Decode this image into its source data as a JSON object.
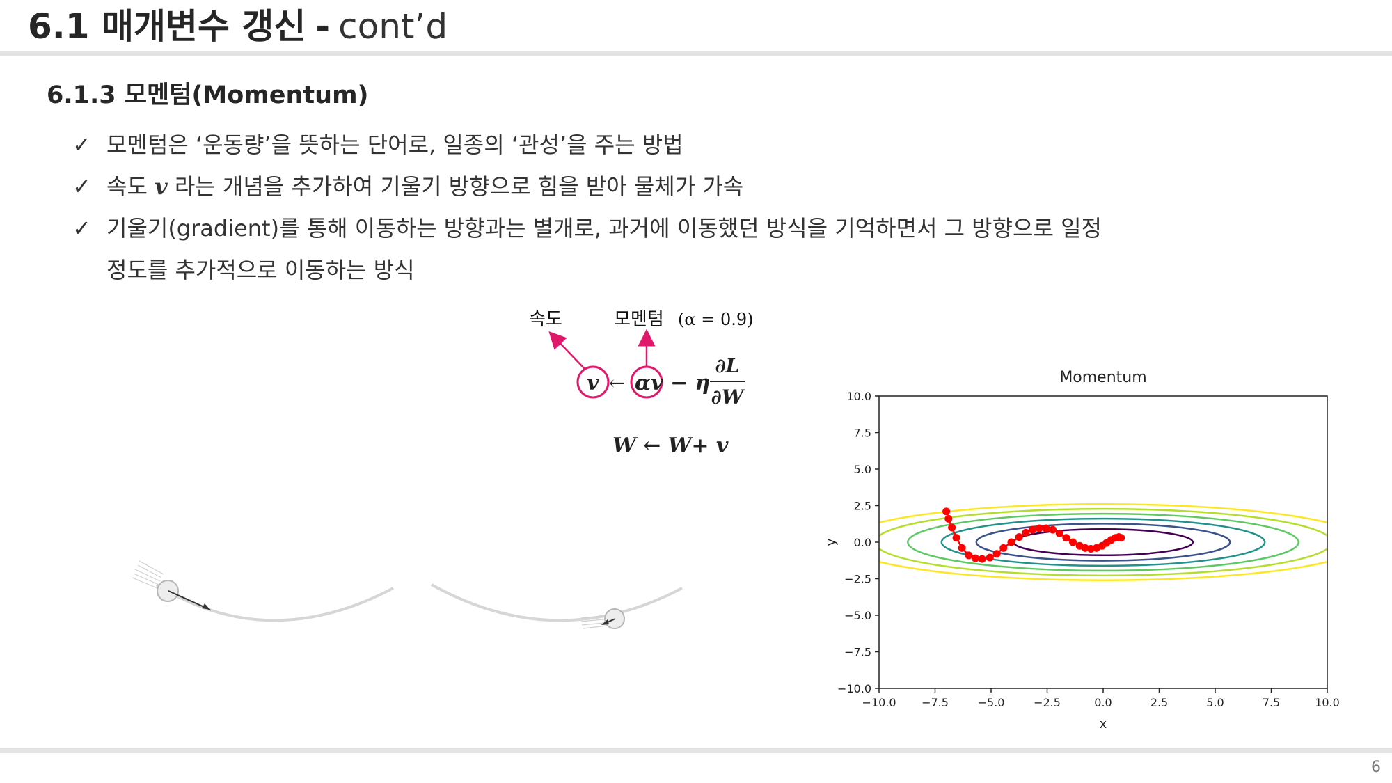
{
  "header": {
    "title_main": "6.1 매개변수 갱신",
    "title_sep": "-",
    "title_cont": "cont’d"
  },
  "section": {
    "heading": "6.1.3 모멘텀(Momentum)"
  },
  "bullets": [
    {
      "check": "✓",
      "text": "모멘텀은 ‘운동량’을 뜻하는 단어로, 일종의 ‘관성’을 주는 방법"
    },
    {
      "check": "✓",
      "before": "속도",
      "var": "v",
      "after": "라는 개념을 추가하여 기울기 방향으로 힘을 받아 물체가 가속"
    },
    {
      "check": "✓",
      "text": "기울기(gradient)를 통해 이동하는 방향과는 별개로, 과거에 이동했던 방식을 기억하면서 그 방향으로 일정",
      "text2": "정도를 추가적으로 이동하는 방식"
    }
  ],
  "formula": {
    "label_velocity": "속도",
    "label_momentum": "모멘텀",
    "label_alpha": "(α = 0.9)",
    "eq1_lhs": "v",
    "eq1_arrow": "←",
    "eq1_rhs": "αv − η",
    "eq1_frac_num": "∂L",
    "eq1_frac_den": "∂W",
    "eq2": "W ← W+ v",
    "highlight_color": "#e0186c"
  },
  "chart_data": {
    "type": "line",
    "title": "Momentum",
    "xlabel": "x",
    "ylabel": "y",
    "xlim": [
      -10,
      10
    ],
    "ylim": [
      -10,
      10
    ],
    "xticks": [
      "−10.0",
      "−7.5",
      "−5.0",
      "−2.5",
      "0.0",
      "2.5",
      "5.0",
      "7.5",
      "10.0"
    ],
    "yticks": [
      "10.0",
      "7.5",
      "5.0",
      "2.5",
      "0.0",
      "−2.5",
      "−5.0",
      "−7.5",
      "−10.0"
    ],
    "series": [
      {
        "color": "#ff0000",
        "x": [
          -7.0,
          -6.9,
          -6.75,
          -6.55,
          -6.3,
          -6.0,
          -5.7,
          -5.4,
          -5.05,
          -4.75,
          -4.45,
          -4.1,
          -3.75,
          -3.45,
          -3.15,
          -2.85,
          -2.55,
          -2.25,
          -1.95,
          -1.65,
          -1.35,
          -1.05,
          -0.8,
          -0.55,
          -0.3,
          -0.05,
          0.15,
          0.35,
          0.55,
          0.7,
          0.8
        ],
        "y": [
          2.1,
          1.6,
          1.0,
          0.3,
          -0.4,
          -0.9,
          -1.1,
          -1.15,
          -1.05,
          -0.8,
          -0.4,
          0.0,
          0.35,
          0.65,
          0.85,
          0.95,
          0.95,
          0.85,
          0.6,
          0.3,
          0.0,
          -0.25,
          -0.4,
          -0.45,
          -0.4,
          -0.25,
          -0.05,
          0.15,
          0.3,
          0.35,
          0.3
        ]
      }
    ],
    "contours": [
      {
        "color": "#440154"
      },
      {
        "color": "#3b528b"
      },
      {
        "color": "#21918c"
      },
      {
        "color": "#5ec962"
      },
      {
        "color": "#b5de2b"
      },
      {
        "color": "#fde725"
      }
    ]
  },
  "page_number": "6"
}
